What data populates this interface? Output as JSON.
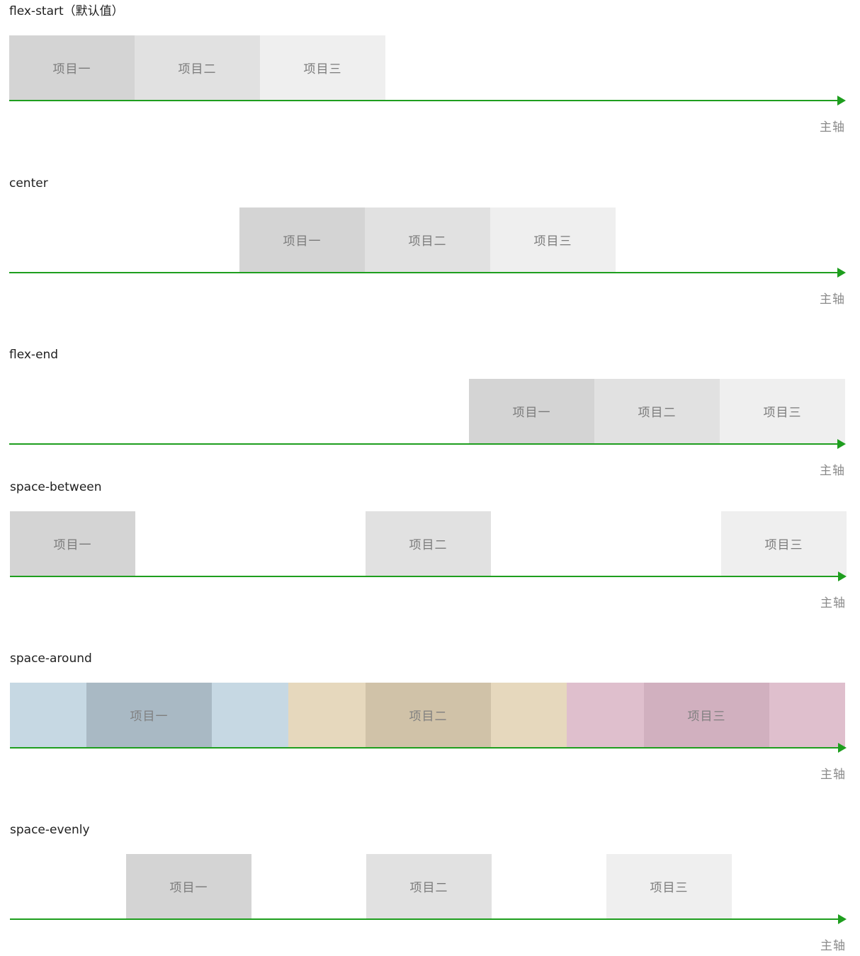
{
  "axis_label": "主轴",
  "items": [
    "项目一",
    "项目二",
    "项目三"
  ],
  "colors": {
    "axis": "#1e9e1e",
    "item1": "#d4d4d4",
    "item2": "#e1e1e1",
    "item3": "#efefef",
    "around_blue_outer": "#c6d8e3",
    "around_blue_inner": "#a9b9c4",
    "around_tan_outer": "#e6d8bd",
    "around_tan_inner": "#d0c2a8",
    "around_pink_outer": "#dfbfcd",
    "around_pink_inner": "#d1b0bf"
  },
  "sections": [
    {
      "title": "flex-start（默认值）"
    },
    {
      "title": "center"
    },
    {
      "title": "flex-end"
    },
    {
      "title": "space-between"
    },
    {
      "title": "space-around"
    },
    {
      "title": "space-evenly"
    }
  ]
}
